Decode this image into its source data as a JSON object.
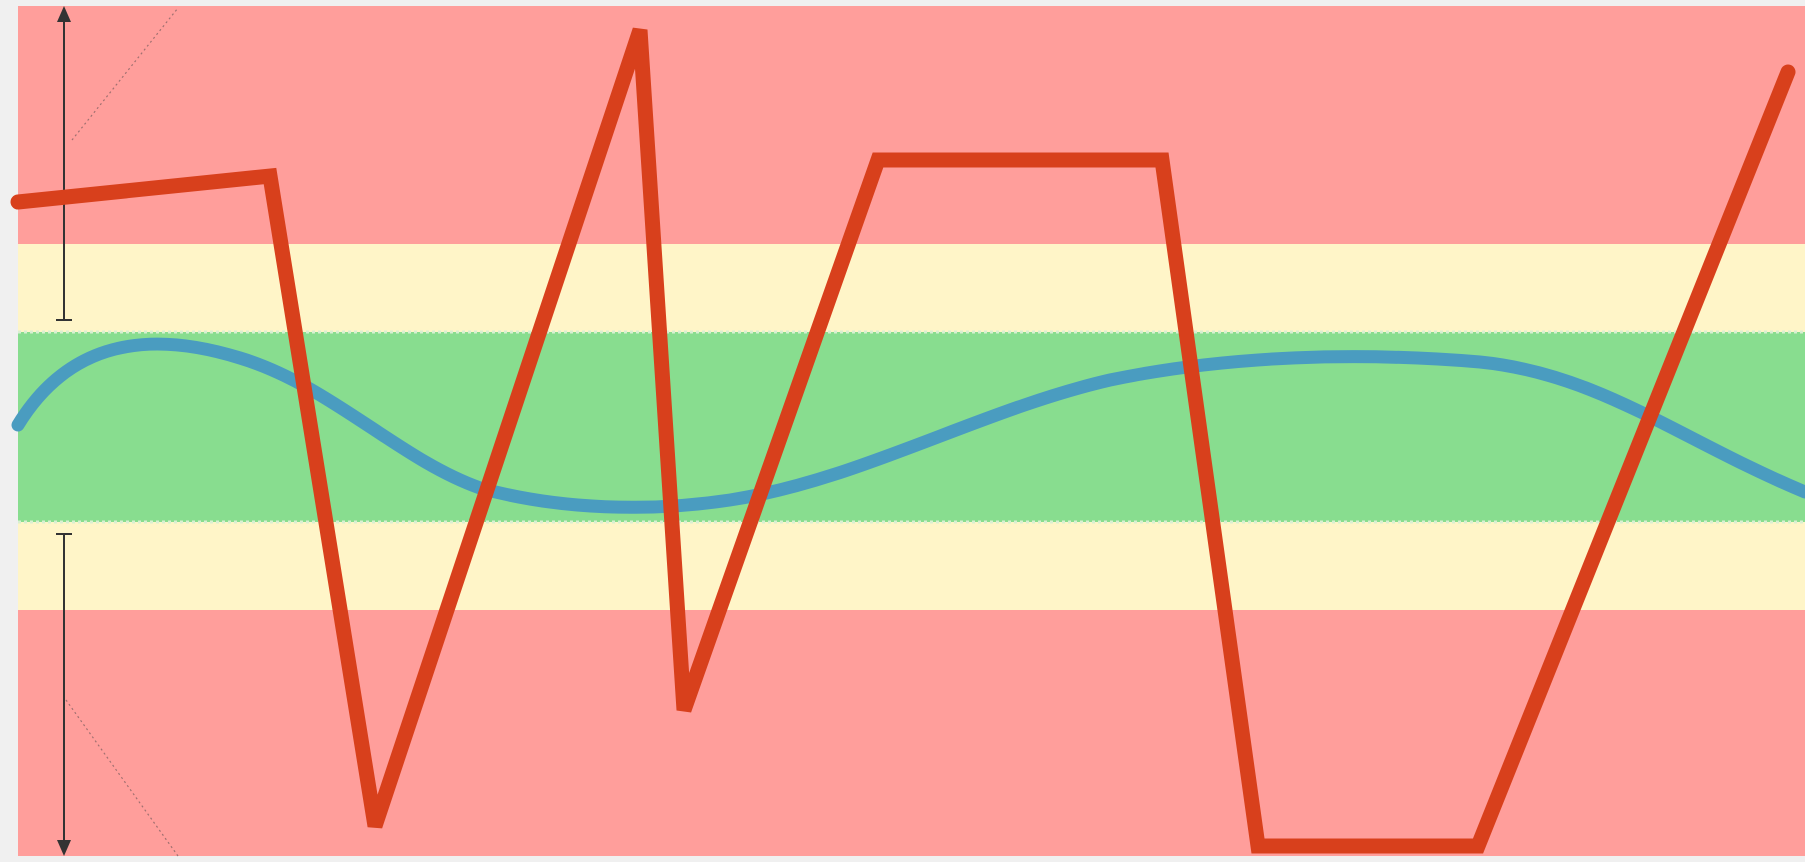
{
  "diagram": {
    "background_color": "#f0f0f0",
    "zone_colors": {
      "outer": "#ff9e9b",
      "middle": "#fff5c8",
      "inner": "#88dd8f"
    },
    "divider_color": "#d9efd2",
    "marker_color": "#333333",
    "guide_line_color": "#a07070",
    "series": [
      {
        "id": "wide-signal",
        "color": "#d8401c"
      },
      {
        "id": "narrow-signal",
        "color": "#4a9cc0"
      }
    ]
  }
}
